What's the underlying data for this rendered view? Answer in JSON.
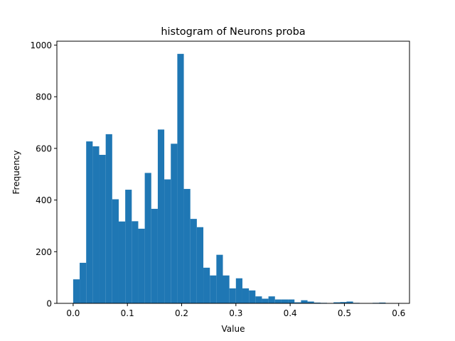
{
  "chart_data": {
    "type": "bar",
    "subtype": "histogram",
    "title": "histogram of Neurons proba",
    "xlabel": "Value",
    "ylabel": "Frequency",
    "xlim": [
      -0.03,
      0.62
    ],
    "ylim": [
      0,
      1015
    ],
    "grid": false,
    "bar_color": "#1f77b4",
    "bin_width": 0.012,
    "x_ticks": [
      0.0,
      0.1,
      0.2,
      0.3,
      0.4,
      0.5,
      0.6
    ],
    "x_tick_labels": [
      "0.0",
      "0.1",
      "0.2",
      "0.3",
      "0.4",
      "0.5",
      "0.6"
    ],
    "y_ticks": [
      0,
      200,
      400,
      600,
      800,
      1000
    ],
    "y_tick_labels": [
      "0",
      "200",
      "400",
      "600",
      "800",
      "1000"
    ],
    "bins_start": [
      0.0,
      0.012,
      0.024,
      0.036,
      0.048,
      0.06,
      0.072,
      0.084,
      0.096,
      0.108,
      0.12,
      0.132,
      0.144,
      0.156,
      0.168,
      0.18,
      0.192,
      0.204,
      0.216,
      0.228,
      0.24,
      0.252,
      0.264,
      0.276,
      0.288,
      0.3,
      0.312,
      0.324,
      0.336,
      0.348,
      0.36,
      0.372,
      0.384,
      0.396,
      0.408,
      0.42,
      0.432,
      0.444,
      0.456,
      0.468,
      0.48,
      0.492,
      0.504,
      0.516,
      0.528,
      0.54,
      0.552,
      0.564,
      0.576
    ],
    "values": [
      93,
      157,
      627,
      608,
      575,
      655,
      403,
      317,
      440,
      318,
      289,
      505,
      366,
      673,
      480,
      618,
      966,
      443,
      327,
      295,
      138,
      108,
      188,
      108,
      58,
      97,
      58,
      50,
      27,
      18,
      27,
      15,
      15,
      15,
      4,
      12,
      7,
      3,
      2,
      1,
      4,
      5,
      7,
      2,
      1,
      1,
      2,
      3,
      1
    ]
  }
}
